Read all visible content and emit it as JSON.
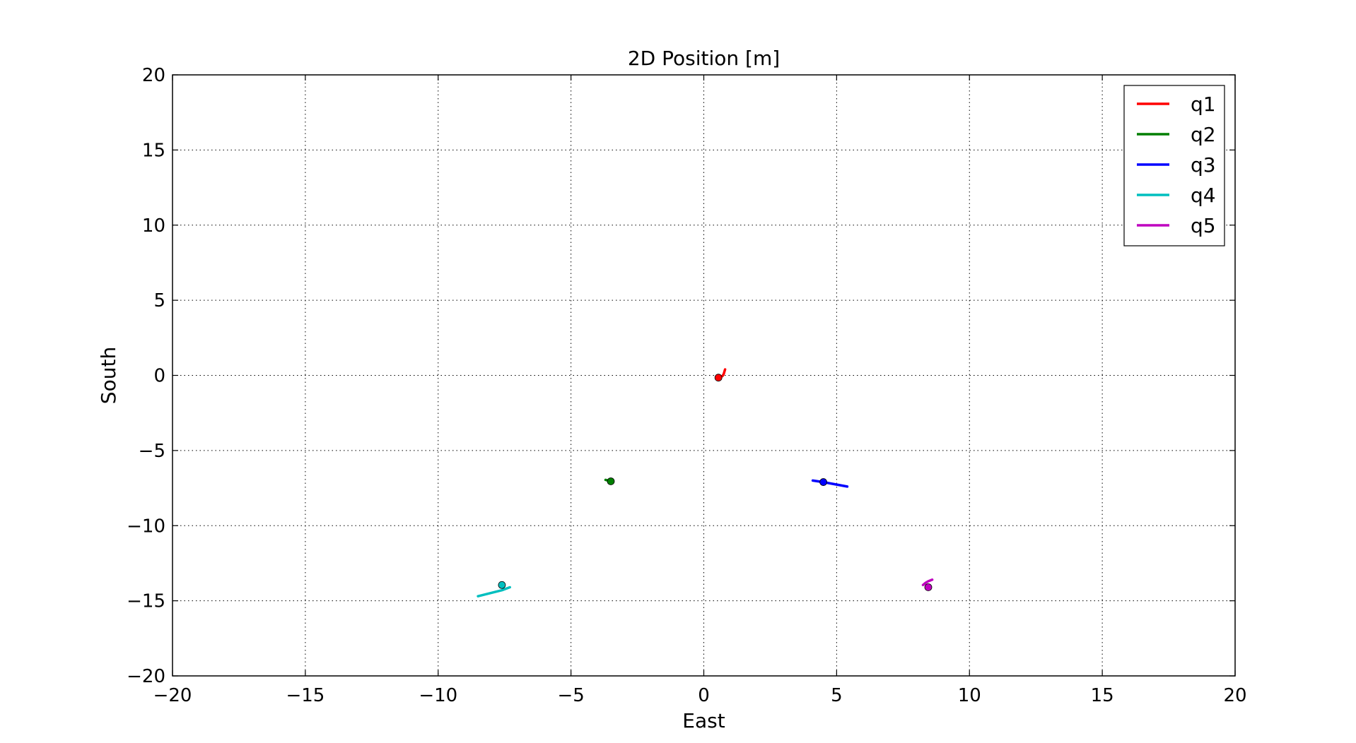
{
  "chart_data": {
    "type": "line",
    "title": "2D Position [m]",
    "xlabel": "East",
    "ylabel": "South",
    "xlim": [
      -20,
      20
    ],
    "ylim": [
      -20,
      20
    ],
    "xticks": [
      -20,
      -15,
      -10,
      -5,
      0,
      5,
      10,
      15,
      20
    ],
    "yticks": [
      -20,
      -15,
      -10,
      -5,
      0,
      5,
      10,
      15,
      20
    ],
    "xtick_labels": [
      "−20",
      "−15",
      "−10",
      "−5",
      "0",
      "5",
      "10",
      "15",
      "20"
    ],
    "ytick_labels": [
      "−20",
      "−15",
      "−10",
      "−5",
      "0",
      "5",
      "10",
      "15",
      "20"
    ],
    "grid": true,
    "legend_position": "top-right",
    "series": [
      {
        "name": "q1",
        "color": "#ff0000",
        "x": [
          0.8,
          0.75,
          0.7,
          0.6,
          0.55
        ],
        "y": [
          0.4,
          0.1,
          -0.05,
          -0.1,
          -0.15
        ],
        "marker": {
          "x": 0.55,
          "y": -0.15
        }
      },
      {
        "name": "q2",
        "color": "#007f00",
        "x": [
          -3.7,
          -3.6,
          -3.5
        ],
        "y": [
          -6.95,
          -7.0,
          -7.05
        ],
        "marker": {
          "x": -3.5,
          "y": -7.05
        }
      },
      {
        "name": "q3",
        "color": "#0000ff",
        "x": [
          4.1,
          4.5,
          5.4
        ],
        "y": [
          -7.0,
          -7.1,
          -7.4
        ],
        "marker": {
          "x": 4.5,
          "y": -7.1
        }
      },
      {
        "name": "q4",
        "color": "#00bfbf",
        "x": [
          -8.5,
          -7.6,
          -7.3
        ],
        "y": [
          -14.7,
          -14.3,
          -14.1
        ],
        "marker": {
          "x": -7.6,
          "y": -13.95
        }
      },
      {
        "name": "q5",
        "color": "#bf00bf",
        "x": [
          8.25,
          8.35,
          8.45,
          8.6
        ],
        "y": [
          -13.95,
          -13.8,
          -13.7,
          -13.6
        ],
        "marker": {
          "x": 8.45,
          "y": -14.1
        }
      }
    ]
  }
}
